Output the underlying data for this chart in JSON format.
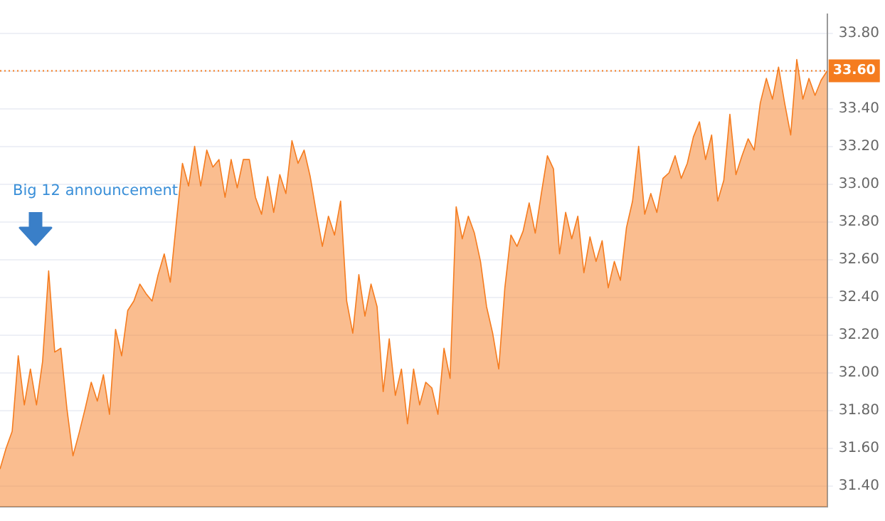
{
  "chart_data": {
    "type": "area",
    "categories": [
      null,
      null,
      null,
      null,
      null,
      null,
      null,
      null,
      null,
      null,
      null,
      null,
      null,
      null,
      null,
      null,
      null,
      null,
      null,
      null,
      null,
      null,
      null,
      null,
      null,
      null,
      null,
      null,
      null,
      null,
      null,
      null,
      null,
      null,
      null,
      null,
      null,
      null,
      null,
      null,
      null,
      null,
      null,
      null,
      null,
      null,
      null,
      null,
      null,
      null,
      null,
      null,
      null,
      null,
      null,
      null,
      null,
      null,
      null,
      null,
      null,
      null,
      null,
      null,
      null,
      null,
      null,
      null,
      null,
      null,
      null,
      null,
      null,
      null,
      null,
      null,
      null,
      null,
      null,
      null,
      null,
      null,
      null,
      null,
      null,
      null,
      null,
      null,
      null,
      null,
      null,
      null,
      null,
      null,
      null,
      null,
      null,
      null,
      null,
      null,
      null,
      null,
      null,
      null,
      null,
      null,
      null,
      null,
      null,
      null,
      null,
      null,
      null,
      null,
      null,
      null,
      null,
      null,
      null,
      null,
      null,
      null,
      null,
      null,
      null,
      null,
      null,
      null,
      null,
      null,
      null,
      null,
      null,
      null,
      null,
      null,
      null
    ],
    "series": [
      {
        "color": "#f57c1f",
        "values": [
          31.49,
          31.6,
          31.69,
          32.09,
          31.83,
          32.02,
          31.83,
          32.06,
          32.54,
          32.11,
          32.13,
          31.81,
          31.56,
          31.68,
          31.81,
          31.95,
          31.85,
          31.99,
          31.78,
          32.23,
          32.09,
          32.33,
          32.38,
          32.47,
          32.42,
          32.38,
          32.52,
          32.63,
          32.48,
          32.8,
          33.11,
          32.99,
          33.2,
          32.99,
          33.18,
          33.09,
          33.13,
          32.93,
          33.13,
          32.98,
          33.13,
          33.13,
          32.93,
          32.84,
          33.04,
          32.85,
          33.05,
          32.95,
          33.23,
          33.11,
          33.18,
          33.04,
          32.85,
          32.67,
          32.83,
          32.73,
          32.91,
          32.38,
          32.21,
          32.52,
          32.3,
          32.47,
          32.35,
          31.9,
          32.18,
          31.88,
          32.02,
          31.73,
          32.02,
          31.83,
          31.95,
          31.92,
          31.78,
          32.13,
          31.97,
          32.88,
          32.71,
          32.83,
          32.74,
          32.59,
          32.35,
          32.21,
          32.02,
          32.45,
          32.73,
          32.67,
          32.75,
          32.9,
          32.74,
          32.95,
          33.15,
          33.08,
          32.63,
          32.85,
          32.71,
          32.83,
          32.53,
          32.72,
          32.59,
          32.7,
          32.45,
          32.59,
          32.49,
          32.77,
          32.91,
          33.2,
          32.84,
          32.95,
          32.85,
          33.03,
          33.06,
          33.15,
          33.03,
          33.11,
          33.25,
          33.33,
          33.13,
          33.26,
          32.91,
          33.02,
          33.37,
          33.05,
          33.15,
          33.24,
          33.18,
          33.43,
          33.56,
          33.45,
          33.62,
          33.43,
          33.26,
          33.66,
          33.45,
          33.56,
          33.47,
          33.55,
          33.6
        ]
      }
    ],
    "ylim": [
      31.29,
      33.9
    ],
    "yticks": [
      {
        "value": 31.4,
        "label": "31.40"
      },
      {
        "value": 31.6,
        "label": "31.60"
      },
      {
        "value": 31.8,
        "label": "31.80"
      },
      {
        "value": 32.0,
        "label": "32.00"
      },
      {
        "value": 32.2,
        "label": "32.20"
      },
      {
        "value": 32.4,
        "label": "32.40"
      },
      {
        "value": 32.6,
        "label": "32.60"
      },
      {
        "value": 32.8,
        "label": "32.80"
      },
      {
        "value": 33.0,
        "label": "33.00"
      },
      {
        "value": 33.2,
        "label": "33.20"
      },
      {
        "value": 33.4,
        "label": "33.40"
      },
      {
        "value": 33.6,
        "label": null
      },
      {
        "value": 33.8,
        "label": "33.80"
      }
    ],
    "grid": "y",
    "ref_lines": [
      {
        "axis": "y",
        "value": 33.6,
        "label": "33.60",
        "color": "#f57c1f",
        "line_style": "dotted"
      }
    ],
    "annotations": [
      "Big 12 announcement"
    ]
  }
}
